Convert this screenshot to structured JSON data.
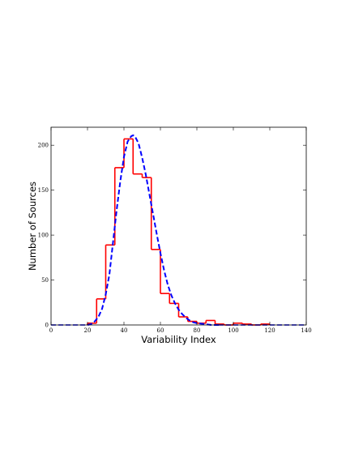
{
  "chart_data": {
    "type": "histogram",
    "xlabel": "Variability Index",
    "ylabel": "Number of Sources",
    "xlim": [
      0,
      140
    ],
    "ylim": [
      0,
      220
    ],
    "xticks": [
      0,
      20,
      40,
      60,
      80,
      100,
      120,
      140
    ],
    "yticks": [
      0,
      50,
      100,
      150,
      200
    ],
    "grid": false,
    "legend": "none",
    "series": [
      {
        "kind": "histogram-step",
        "color": "#ff0000",
        "bin_edges": [
          20,
          25,
          30,
          35,
          40,
          45,
          50,
          55,
          60,
          65,
          70,
          75,
          80,
          85,
          90,
          95,
          100,
          105,
          110,
          115,
          120
        ],
        "counts": [
          2,
          29,
          89,
          175,
          207,
          168,
          164,
          84,
          35,
          24,
          9,
          4,
          2,
          5,
          1,
          0,
          2,
          1,
          0,
          1
        ]
      },
      {
        "kind": "fit-curve",
        "color": "#0000ff",
        "style": "dashed",
        "x": [
          20,
          22,
          24,
          26,
          28,
          30,
          32,
          34,
          36,
          38,
          40,
          42,
          44,
          45,
          46,
          48,
          50,
          52,
          54,
          56,
          58,
          60,
          62,
          64,
          66,
          68,
          70,
          72,
          74,
          76,
          78,
          80,
          84,
          88,
          92
        ],
        "y": [
          0,
          1,
          4,
          9,
          18,
          34,
          56,
          92,
          128,
          160,
          187,
          204,
          210,
          211,
          210,
          202,
          186,
          167,
          145,
          123,
          101,
          80,
          61,
          45,
          33,
          24,
          17,
          12,
          8,
          5,
          3,
          2,
          1,
          0,
          0
        ]
      }
    ]
  }
}
